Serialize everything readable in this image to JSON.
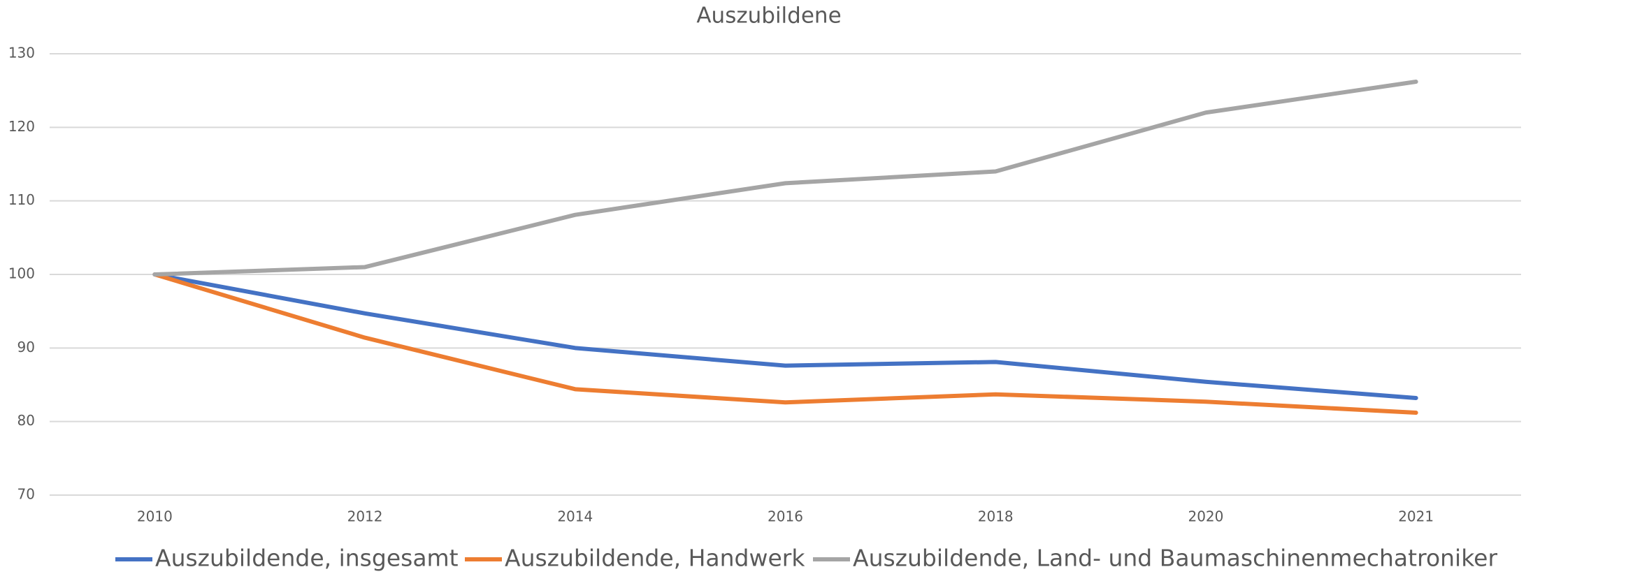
{
  "chart_data": {
    "type": "line",
    "title": "Auszubildene",
    "categories": [
      "2010",
      "2012",
      "2014",
      "2016",
      "2018",
      "2020",
      "2021"
    ],
    "series": [
      {
        "name": "Auszubildende, insgesamt",
        "color": "#4472c4",
        "values": [
          100,
          94.7,
          90,
          87.6,
          88.1,
          85.4,
          83.2
        ]
      },
      {
        "name": "Auszubildende, Handwerk",
        "color": "#ed7d31",
        "values": [
          100,
          91.4,
          84.4,
          82.6,
          83.7,
          82.7,
          81.2
        ]
      },
      {
        "name": "Auszubildende, Land- und Baumaschinenmechatroniker",
        "color": "#a5a5a5",
        "values": [
          100,
          101,
          108.1,
          112.4,
          114,
          122,
          126.2
        ]
      }
    ],
    "ylim": [
      70,
      130
    ],
    "yticks": [
      70,
      80,
      90,
      100,
      110,
      120,
      130
    ],
    "grid": true,
    "legend": "bottom"
  }
}
